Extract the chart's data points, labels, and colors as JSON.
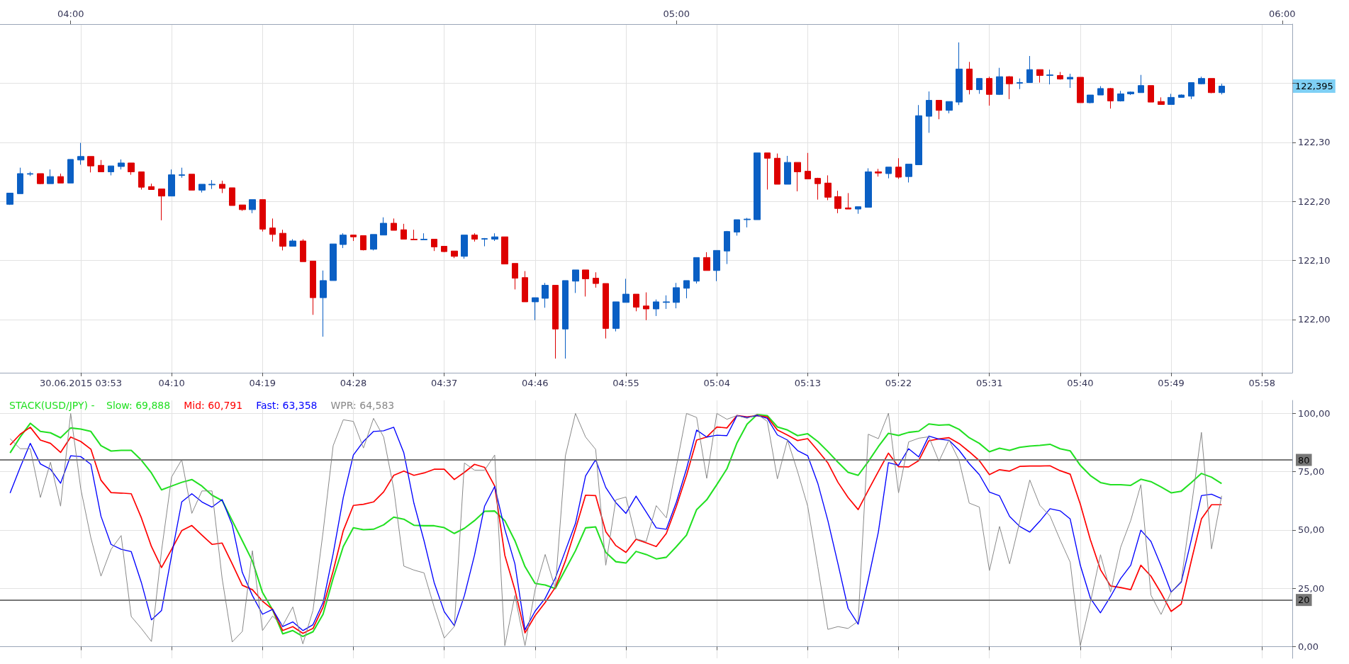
{
  "chart_data": [
    {
      "type": "candlestick",
      "x": [
        "2015-06-30T03:54",
        "2015-06-30T03:55",
        "2015-06-30T03:56",
        "2015-06-30T03:57",
        "2015-06-30T03:58",
        "2015-06-30T03:59",
        "2015-06-30T04:00",
        "2015-06-30T04:01",
        "2015-06-30T04:02",
        "2015-06-30T04:03",
        "2015-06-30T04:04",
        "2015-06-30T04:05",
        "2015-06-30T04:06",
        "2015-06-30T04:07",
        "2015-06-30T04:08",
        "2015-06-30T04:09",
        "2015-06-30T04:10",
        "2015-06-30T04:11",
        "2015-06-30T04:12",
        "2015-06-30T04:13",
        "2015-06-30T04:14",
        "2015-06-30T04:15",
        "2015-06-30T04:16",
        "2015-06-30T04:17",
        "2015-06-30T04:18",
        "2015-06-30T04:19",
        "2015-06-30T04:20",
        "2015-06-30T04:21",
        "2015-06-30T04:22",
        "2015-06-30T04:23",
        "2015-06-30T04:24",
        "2015-06-30T04:25",
        "2015-06-30T04:26",
        "2015-06-30T04:27",
        "2015-06-30T04:28",
        "2015-06-30T04:29",
        "2015-06-30T04:30",
        "2015-06-30T04:31",
        "2015-06-30T04:32",
        "2015-06-30T04:33",
        "2015-06-30T04:34",
        "2015-06-30T04:35",
        "2015-06-30T04:36",
        "2015-06-30T04:37",
        "2015-06-30T04:38",
        "2015-06-30T04:39",
        "2015-06-30T04:40",
        "2015-06-30T04:41",
        "2015-06-30T04:42",
        "2015-06-30T04:43",
        "2015-06-30T04:44",
        "2015-06-30T04:45",
        "2015-06-30T04:46",
        "2015-06-30T04:47",
        "2015-06-30T04:48",
        "2015-06-30T04:49",
        "2015-06-30T04:50",
        "2015-06-30T04:51",
        "2015-06-30T04:52",
        "2015-06-30T04:53",
        "2015-06-30T04:54",
        "2015-06-30T04:55",
        "2015-06-30T04:56",
        "2015-06-30T04:57",
        "2015-06-30T04:58",
        "2015-06-30T04:59",
        "2015-06-30T05:00",
        "2015-06-30T05:01",
        "2015-06-30T05:02",
        "2015-06-30T05:03",
        "2015-06-30T05:04",
        "2015-06-30T05:05",
        "2015-06-30T05:06",
        "2015-06-30T05:07",
        "2015-06-30T05:08",
        "2015-06-30T05:09",
        "2015-06-30T05:10",
        "2015-06-30T05:11",
        "2015-06-30T05:12",
        "2015-06-30T05:13",
        "2015-06-30T05:14",
        "2015-06-30T05:15",
        "2015-06-30T05:16",
        "2015-06-30T05:17",
        "2015-06-30T05:18",
        "2015-06-30T05:19",
        "2015-06-30T05:20",
        "2015-06-30T05:21",
        "2015-06-30T05:22",
        "2015-06-30T05:23",
        "2015-06-30T05:24",
        "2015-06-30T05:25",
        "2015-06-30T05:26",
        "2015-06-30T05:27",
        "2015-06-30T05:28",
        "2015-06-30T05:29",
        "2015-06-30T05:30",
        "2015-06-30T05:31",
        "2015-06-30T05:32",
        "2015-06-30T05:33",
        "2015-06-30T05:34",
        "2015-06-30T05:35",
        "2015-06-30T05:36",
        "2015-06-30T05:37",
        "2015-06-30T05:38",
        "2015-06-30T05:39",
        "2015-06-30T05:40",
        "2015-06-30T05:41",
        "2015-06-30T05:42",
        "2015-06-30T05:43",
        "2015-06-30T05:44",
        "2015-06-30T05:45",
        "2015-06-30T05:46",
        "2015-06-30T05:47",
        "2015-06-30T05:48",
        "2015-06-30T05:49",
        "2015-06-30T05:50",
        "2015-06-30T05:51",
        "2015-06-30T05:52",
        "2015-06-30T05:53",
        "2015-06-30T05:54"
      ],
      "ohlc": [
        [
          122.195,
          122.214,
          122.194,
          122.214
        ],
        [
          122.213,
          122.257,
          122.213,
          122.247
        ],
        [
          122.246,
          122.25,
          122.243,
          122.247
        ],
        [
          122.247,
          122.247,
          122.229,
          122.23
        ],
        [
          122.23,
          122.254,
          122.23,
          122.242
        ],
        [
          122.242,
          122.247,
          122.231,
          122.231
        ],
        [
          122.231,
          122.271,
          122.231,
          122.271
        ],
        [
          122.27,
          122.299,
          122.262,
          122.276
        ],
        [
          122.276,
          122.276,
          122.249,
          122.26
        ],
        [
          122.261,
          122.27,
          122.25,
          122.25
        ],
        [
          122.25,
          122.26,
          122.244,
          122.26
        ],
        [
          122.259,
          122.271,
          122.254,
          122.265
        ],
        [
          122.265,
          122.265,
          122.245,
          122.25
        ],
        [
          122.25,
          122.25,
          122.22,
          122.224
        ],
        [
          122.225,
          122.23,
          122.22,
          122.22
        ],
        [
          122.221,
          122.221,
          122.168,
          122.209
        ],
        [
          122.209,
          122.254,
          122.209,
          122.245
        ],
        [
          122.244,
          122.257,
          122.24,
          122.245
        ],
        [
          122.246,
          122.246,
          122.219,
          122.219
        ],
        [
          122.219,
          122.229,
          122.215,
          122.229
        ],
        [
          122.228,
          122.236,
          122.221,
          122.229
        ],
        [
          122.229,
          122.235,
          122.214,
          122.222
        ],
        [
          122.223,
          122.223,
          122.193,
          122.193
        ],
        [
          122.194,
          122.194,
          122.184,
          122.186
        ],
        [
          122.186,
          122.203,
          122.18,
          122.203
        ],
        [
          122.203,
          122.203,
          122.149,
          122.153
        ],
        [
          122.155,
          122.171,
          122.132,
          122.144
        ],
        [
          122.146,
          122.152,
          122.117,
          122.124
        ],
        [
          122.124,
          122.136,
          122.124,
          122.133
        ],
        [
          122.133,
          122.136,
          122.098,
          122.098
        ],
        [
          122.099,
          122.099,
          122.008,
          122.037
        ],
        [
          122.037,
          122.083,
          121.971,
          122.066
        ],
        [
          122.066,
          122.128,
          122.066,
          122.128
        ],
        [
          122.127,
          122.146,
          122.121,
          122.143
        ],
        [
          122.143,
          122.143,
          122.133,
          122.14
        ],
        [
          122.142,
          122.142,
          122.117,
          122.118
        ],
        [
          122.119,
          122.144,
          122.117,
          122.144
        ],
        [
          122.143,
          122.173,
          122.143,
          122.163
        ],
        [
          122.163,
          122.171,
          122.151,
          122.151
        ],
        [
          122.152,
          122.162,
          122.136,
          122.136
        ],
        [
          122.136,
          122.152,
          122.135,
          122.135
        ],
        [
          122.135,
          122.146,
          122.135,
          122.136
        ],
        [
          122.136,
          122.136,
          122.116,
          122.123
        ],
        [
          122.124,
          122.124,
          122.114,
          122.115
        ],
        [
          122.116,
          122.116,
          122.104,
          122.107
        ],
        [
          122.107,
          122.143,
          122.103,
          122.143
        ],
        [
          122.143,
          122.146,
          122.132,
          122.136
        ],
        [
          122.136,
          122.138,
          122.124,
          122.137
        ],
        [
          122.136,
          122.146,
          122.133,
          122.14
        ],
        [
          122.14,
          122.14,
          122.094,
          122.094
        ],
        [
          122.095,
          122.095,
          122.051,
          122.07
        ],
        [
          122.071,
          122.082,
          122.03,
          122.03
        ],
        [
          122.03,
          122.037,
          121.999,
          122.037
        ],
        [
          122.036,
          122.062,
          122.02,
          122.058
        ],
        [
          122.058,
          122.058,
          121.934,
          121.984
        ],
        [
          121.984,
          122.066,
          121.934,
          122.066
        ],
        [
          122.065,
          122.084,
          122.045,
          122.084
        ],
        [
          122.084,
          122.084,
          122.039,
          122.069
        ],
        [
          122.07,
          122.08,
          122.054,
          122.061
        ],
        [
          122.061,
          122.061,
          121.968,
          121.985
        ],
        [
          121.985,
          122.03,
          121.98,
          122.03
        ],
        [
          122.029,
          122.069,
          122.029,
          122.043
        ],
        [
          122.043,
          122.043,
          122.014,
          122.021
        ],
        [
          122.023,
          122.046,
          121.999,
          122.018
        ],
        [
          122.018,
          122.034,
          122.006,
          122.03
        ],
        [
          122.029,
          122.041,
          122.018,
          122.03
        ],
        [
          122.029,
          122.062,
          122.019,
          122.054
        ],
        [
          122.053,
          122.066,
          122.036,
          122.066
        ],
        [
          122.065,
          122.105,
          122.061,
          122.105
        ],
        [
          122.105,
          122.114,
          122.083,
          122.083
        ],
        [
          122.083,
          122.117,
          122.065,
          122.117
        ],
        [
          122.116,
          122.15,
          122.094,
          122.149
        ],
        [
          122.148,
          122.169,
          122.142,
          122.169
        ],
        [
          122.169,
          122.172,
          122.156,
          122.17
        ],
        [
          122.169,
          122.282,
          122.169,
          122.282
        ],
        [
          122.282,
          122.282,
          122.22,
          122.273
        ],
        [
          122.273,
          122.281,
          122.229,
          122.229
        ],
        [
          122.229,
          122.277,
          122.229,
          122.266
        ],
        [
          122.266,
          122.266,
          122.217,
          122.25
        ],
        [
          122.251,
          122.282,
          122.238,
          122.238
        ],
        [
          122.239,
          122.24,
          122.203,
          122.23
        ],
        [
          122.231,
          122.244,
          122.202,
          122.207
        ],
        [
          122.208,
          122.218,
          122.18,
          122.188
        ],
        [
          122.189,
          122.214,
          122.187,
          122.187
        ],
        [
          122.187,
          122.191,
          122.179,
          122.191
        ],
        [
          122.19,
          122.256,
          122.19,
          122.25
        ],
        [
          122.25,
          122.255,
          122.242,
          122.248
        ],
        [
          122.247,
          122.258,
          122.239,
          122.258
        ],
        [
          122.258,
          122.273,
          122.238,
          122.241
        ],
        [
          122.242,
          122.263,
          122.232,
          122.263
        ],
        [
          122.262,
          122.363,
          122.262,
          122.345
        ],
        [
          122.344,
          122.386,
          122.316,
          122.371
        ],
        [
          122.371,
          122.371,
          122.339,
          122.354
        ],
        [
          122.354,
          122.369,
          122.349,
          122.369
        ],
        [
          122.368,
          122.469,
          122.363,
          122.424
        ],
        [
          122.424,
          122.436,
          122.381,
          122.389
        ],
        [
          122.389,
          122.408,
          122.382,
          122.408
        ],
        [
          122.408,
          122.411,
          122.362,
          122.381
        ],
        [
          122.381,
          122.426,
          122.38,
          122.411
        ],
        [
          122.411,
          122.412,
          122.373,
          122.399
        ],
        [
          122.4,
          122.408,
          122.39,
          122.401
        ],
        [
          122.401,
          122.446,
          122.401,
          122.423
        ],
        [
          122.423,
          122.423,
          122.401,
          122.413
        ],
        [
          122.413,
          122.423,
          122.398,
          122.414
        ],
        [
          122.413,
          122.419,
          122.406,
          122.407
        ],
        [
          122.407,
          122.416,
          122.392,
          122.41
        ],
        [
          122.41,
          122.41,
          122.367,
          122.367
        ],
        [
          122.367,
          122.38,
          122.366,
          122.38
        ],
        [
          122.38,
          122.395,
          122.38,
          122.391
        ],
        [
          122.391,
          122.392,
          122.357,
          122.37
        ],
        [
          122.37,
          122.387,
          122.369,
          122.382
        ],
        [
          122.382,
          122.386,
          122.38,
          122.385
        ],
        [
          122.384,
          122.414,
          122.384,
          122.396
        ],
        [
          122.396,
          122.396,
          122.368,
          122.368
        ],
        [
          122.369,
          122.376,
          122.364,
          122.364
        ],
        [
          122.364,
          122.382,
          122.364,
          122.376
        ],
        [
          122.376,
          122.381,
          122.376,
          122.38
        ],
        [
          122.378,
          122.401,
          122.373,
          122.401
        ],
        [
          122.399,
          122.411,
          122.398,
          122.408
        ],
        [
          122.408,
          122.408,
          122.383,
          122.384
        ],
        [
          122.384,
          122.399,
          122.381,
          122.395
        ]
      ],
      "colors": [
        "#0a5fc4",
        "#0a5fc4",
        "#0a5fc4",
        "#dd0000",
        "#0a5fc4",
        "#dd0000",
        "#0a5fc4",
        "#0a5fc4",
        "#dd0000",
        "#dd0000",
        "#0a5fc4",
        "#0a5fc4",
        "#dd0000",
        "#dd0000",
        "#dd0000",
        "#dd0000",
        "#0a5fc4",
        "#0a5fc4",
        "#dd0000",
        "#0a5fc4",
        "#0a5fc4",
        "#dd0000",
        "#dd0000",
        "#dd0000",
        "#0a5fc4",
        "#dd0000",
        "#dd0000",
        "#dd0000",
        "#0a5fc4",
        "#dd0000",
        "#dd0000",
        "#0a5fc4",
        "#0a5fc4",
        "#0a5fc4",
        "#dd0000",
        "#dd0000",
        "#0a5fc4",
        "#0a5fc4",
        "#dd0000",
        "#dd0000",
        "#dd0000",
        "#0a5fc4",
        "#dd0000",
        "#dd0000",
        "#dd0000",
        "#0a5fc4",
        "#dd0000",
        "#0a5fc4",
        "#0a5fc4",
        "#dd0000",
        "#dd0000",
        "#dd0000",
        "#0a5fc4",
        "#0a5fc4",
        "#dd0000",
        "#0a5fc4",
        "#0a5fc4",
        "#dd0000",
        "#dd0000",
        "#dd0000",
        "#0a5fc4",
        "#0a5fc4",
        "#dd0000",
        "#dd0000",
        "#0a5fc4",
        "#0a5fc4",
        "#0a5fc4",
        "#0a5fc4",
        "#0a5fc4",
        "#dd0000",
        "#0a5fc4",
        "#0a5fc4",
        "#0a5fc4",
        "#0a5fc4",
        "#0a5fc4",
        "#dd0000",
        "#dd0000",
        "#0a5fc4",
        "#dd0000",
        "#dd0000",
        "#dd0000",
        "#dd0000",
        "#dd0000",
        "#dd0000",
        "#0a5fc4",
        "#0a5fc4",
        "#dd0000",
        "#0a5fc4",
        "#dd0000",
        "#0a5fc4",
        "#0a5fc4",
        "#0a5fc4",
        "#dd0000",
        "#0a5fc4",
        "#0a5fc4",
        "#dd0000",
        "#0a5fc4",
        "#dd0000",
        "#0a5fc4",
        "#dd0000",
        "#0a5fc4",
        "#0a5fc4",
        "#dd0000",
        "#0a5fc4",
        "#dd0000",
        "#0a5fc4",
        "#dd0000",
        "#0a5fc4",
        "#0a5fc4",
        "#dd0000",
        "#0a5fc4",
        "#0a5fc4",
        "#0a5fc4",
        "#dd0000",
        "#dd0000",
        "#0a5fc4",
        "#0a5fc4",
        "#0a5fc4",
        "#0a5fc4",
        "#dd0000",
        "#0a5fc4"
      ],
      "xlim": [
        "2015-06-30T03:53",
        "2015-06-30T06:01"
      ],
      "xticks": [
        {
          "value": "2015-06-30T04:01",
          "label": "30.06.2015 03:53"
        },
        {
          "value": "2015-06-30T04:10",
          "label": "04:10"
        },
        {
          "value": "2015-06-30T04:19",
          "label": "04:19"
        },
        {
          "value": "2015-06-30T04:28",
          "label": "04:28"
        },
        {
          "value": "2015-06-30T04:37",
          "label": "04:37"
        },
        {
          "value": "2015-06-30T04:46",
          "label": "04:46"
        },
        {
          "value": "2015-06-30T04:55",
          "label": "04:55"
        },
        {
          "value": "2015-06-30T05:04",
          "label": "05:04"
        },
        {
          "value": "2015-06-30T05:13",
          "label": "05:13"
        },
        {
          "value": "2015-06-30T05:22",
          "label": "05:22"
        },
        {
          "value": "2015-06-30T05:31",
          "label": "05:31"
        },
        {
          "value": "2015-06-30T05:40",
          "label": "05:40"
        },
        {
          "value": "2015-06-30T05:49",
          "label": "05:49"
        },
        {
          "value": "2015-06-30T05:58",
          "label": "05:58"
        }
      ],
      "x2lim": [
        "2015-06-30T03:53",
        "2015-06-30T06:01"
      ],
      "x2ticks": [
        {
          "value": "2015-06-30T04:00",
          "label": "04:00"
        },
        {
          "value": "2015-06-30T05:00",
          "label": "05:00"
        },
        {
          "value": "2015-06-30T06:00",
          "label": "06:00"
        }
      ],
      "ylim": [
        121.91,
        122.5
      ],
      "yticks": [
        {
          "value": 122,
          "label": "122,00"
        },
        {
          "value": 122.1,
          "label": "122,10"
        },
        {
          "value": 122.2,
          "label": "122,20"
        },
        {
          "value": 122.3,
          "label": "122,30"
        },
        {
          "value": 122.4,
          "label": null
        }
      ],
      "annotations": [
        "122,395"
      ],
      "grid": true
    },
    {
      "type": "line",
      "title": "STACK(USD/JPY) -",
      "x": [
        "2015-06-30T03:54",
        "2015-06-30T03:55",
        "2015-06-30T03:56",
        "2015-06-30T03:57",
        "2015-06-30T03:58",
        "2015-06-30T03:59",
        "2015-06-30T04:00",
        "2015-06-30T04:01",
        "2015-06-30T04:02",
        "2015-06-30T04:03",
        "2015-06-30T04:04",
        "2015-06-30T04:05",
        "2015-06-30T04:06",
        "2015-06-30T04:07",
        "2015-06-30T04:08",
        "2015-06-30T04:09",
        "2015-06-30T04:10",
        "2015-06-30T04:11",
        "2015-06-30T04:12",
        "2015-06-30T04:13",
        "2015-06-30T04:14",
        "2015-06-30T04:15",
        "2015-06-30T04:16",
        "2015-06-30T04:17",
        "2015-06-30T04:18",
        "2015-06-30T04:19",
        "2015-06-30T04:20",
        "2015-06-30T04:21",
        "2015-06-30T04:22",
        "2015-06-30T04:23",
        "2015-06-30T04:24",
        "2015-06-30T04:25",
        "2015-06-30T04:26",
        "2015-06-30T04:27",
        "2015-06-30T04:28",
        "2015-06-30T04:29",
        "2015-06-30T04:30",
        "2015-06-30T04:31",
        "2015-06-30T04:32",
        "2015-06-30T04:33",
        "2015-06-30T04:34",
        "2015-06-30T04:35",
        "2015-06-30T04:36",
        "2015-06-30T04:37",
        "2015-06-30T04:38",
        "2015-06-30T04:39",
        "2015-06-30T04:40",
        "2015-06-30T04:41",
        "2015-06-30T04:42",
        "2015-06-30T04:43",
        "2015-06-30T04:44",
        "2015-06-30T04:45",
        "2015-06-30T04:46",
        "2015-06-30T04:47",
        "2015-06-30T04:48",
        "2015-06-30T04:49",
        "2015-06-30T04:50",
        "2015-06-30T04:51",
        "2015-06-30T04:52",
        "2015-06-30T04:53",
        "2015-06-30T04:54",
        "2015-06-30T04:55",
        "2015-06-30T04:56",
        "2015-06-30T04:57",
        "2015-06-30T04:58",
        "2015-06-30T04:59",
        "2015-06-30T05:00",
        "2015-06-30T05:01",
        "2015-06-30T05:02",
        "2015-06-30T05:03",
        "2015-06-30T05:04",
        "2015-06-30T05:05",
        "2015-06-30T05:06",
        "2015-06-30T05:07",
        "2015-06-30T05:08",
        "2015-06-30T05:09",
        "2015-06-30T05:10",
        "2015-06-30T05:11",
        "2015-06-30T05:12",
        "2015-06-30T05:13",
        "2015-06-30T05:14",
        "2015-06-30T05:15",
        "2015-06-30T05:16",
        "2015-06-30T05:17",
        "2015-06-30T05:18",
        "2015-06-30T05:19",
        "2015-06-30T05:20",
        "2015-06-30T05:21",
        "2015-06-30T05:22",
        "2015-06-30T05:23",
        "2015-06-30T05:24",
        "2015-06-30T05:25",
        "2015-06-30T05:26",
        "2015-06-30T05:27",
        "2015-06-30T05:28",
        "2015-06-30T05:29",
        "2015-06-30T05:30",
        "2015-06-30T05:31",
        "2015-06-30T05:32",
        "2015-06-30T05:33",
        "2015-06-30T05:34",
        "2015-06-30T05:35",
        "2015-06-30T05:36",
        "2015-06-30T05:37",
        "2015-06-30T05:38",
        "2015-06-30T05:39",
        "2015-06-30T05:40",
        "2015-06-30T05:41",
        "2015-06-30T05:42",
        "2015-06-30T05:43",
        "2015-06-30T05:44",
        "2015-06-30T05:45",
        "2015-06-30T05:46",
        "2015-06-30T05:47",
        "2015-06-30T05:48",
        "2015-06-30T05:49",
        "2015-06-30T05:50",
        "2015-06-30T05:51",
        "2015-06-30T05:52",
        "2015-06-30T05:53",
        "2015-06-30T05:54"
      ],
      "series": [
        {
          "name": "Slow: 69,888",
          "color": "#22e022",
          "values": [
            83,
            89.8,
            95.7,
            92.2,
            91.6,
            89.5,
            93.7,
            93.2,
            92.2,
            86.1,
            83.8,
            84.1,
            84.1,
            79.9,
            74.4,
            67.2,
            68.8,
            70.4,
            71.6,
            68.8,
            64.9,
            62.6,
            54,
            45.4,
            36.7,
            23.2,
            15.8,
            5.5,
            6.9,
            4.4,
            6.4,
            13.9,
            29.3,
            42.9,
            50.9,
            50.1,
            50.3,
            52.2,
            55.5,
            54.6,
            52,
            51.8,
            51.8,
            51,
            48.5,
            50.7,
            54,
            58,
            58.1,
            54,
            45.4,
            34.3,
            27.1,
            26.4,
            24.9,
            33,
            41.1,
            50.9,
            51.3,
            40.4,
            36.4,
            35.8,
            40.8,
            39.5,
            37.6,
            38.3,
            42.9,
            47.8,
            58.7,
            62.9,
            69.4,
            76.2,
            87.3,
            95.3,
            99.4,
            99,
            94.1,
            92.8,
            90.4,
            91.2,
            87.9,
            83.6,
            79,
            74.7,
            73.4,
            79.3,
            85.7,
            91.4,
            90.5,
            91.8,
            92.3,
            95.4,
            94.9,
            95.1,
            93.1,
            89.5,
            87.1,
            83.5,
            85,
            84.1,
            85.4,
            85.9,
            86.2,
            86.7,
            84.8,
            83.9,
            77.7,
            73.3,
            70.3,
            69.4,
            69.4,
            69.1,
            71.7,
            70.7,
            68.4,
            65.9,
            66.6,
            70.3,
            74.2,
            72.6,
            69.9
          ]
        },
        {
          "name": "Mid: 60,791",
          "color": "#ff0000",
          "values": [
            86.4,
            91,
            94,
            88.5,
            87.1,
            83.2,
            89.8,
            87.9,
            84.6,
            71.3,
            66,
            65.8,
            65.5,
            55.2,
            42.9,
            33.9,
            41.7,
            49.7,
            51.9,
            47.8,
            43.8,
            44.4,
            35.5,
            26.3,
            24.4,
            19.5,
            16,
            6.9,
            8.6,
            5.7,
            7.8,
            17,
            32.4,
            49.7,
            60.5,
            61,
            62,
            66.3,
            73.4,
            75.2,
            73.4,
            74.4,
            76,
            76,
            71.6,
            74.7,
            78.1,
            76.8,
            68.8,
            39.2,
            24.4,
            5.9,
            13.3,
            18.9,
            25.4,
            36.7,
            50.3,
            64.9,
            64.7,
            49.3,
            43.3,
            40.4,
            46,
            44.5,
            42.9,
            48.5,
            60.2,
            73.4,
            88.5,
            89.8,
            94.1,
            93.7,
            99,
            98.4,
            99,
            98.4,
            92.8,
            90.6,
            88.3,
            89.1,
            84,
            78.7,
            70.4,
            63.9,
            58.7,
            67,
            75,
            82.9,
            77.1,
            77,
            79.7,
            88.2,
            89,
            89.5,
            87,
            83.5,
            79.7,
            73.7,
            75.8,
            75.2,
            77.2,
            77.4,
            77.4,
            77.5,
            75.4,
            73.9,
            61.1,
            45.8,
            33,
            26,
            25.3,
            24.4,
            34.9,
            30.2,
            23,
            15.1,
            18.3,
            36.8,
            54.7,
            60.8,
            60.8
          ]
        },
        {
          "name": "Fast: 63,358",
          "color": "#0000ff",
          "values": [
            65.8,
            76.8,
            87.1,
            78.3,
            76,
            70,
            81.8,
            81.4,
            78.1,
            55.9,
            43.8,
            41.7,
            40.7,
            27.5,
            11.5,
            15.5,
            39.2,
            62,
            65.5,
            62,
            59.8,
            63,
            52.2,
            31.8,
            21.9,
            13.9,
            16,
            8.6,
            10.6,
            6.9,
            9.4,
            18.9,
            39.8,
            63.9,
            82.1,
            87.9,
            92.2,
            92.5,
            94,
            83,
            61.4,
            45.4,
            27.5,
            15,
            9,
            21.9,
            39.2,
            60.2,
            68.6,
            50.3,
            35.5,
            7.2,
            15.2,
            20.7,
            29.3,
            41.1,
            52.8,
            73.1,
            80.1,
            68.2,
            61.7,
            57.1,
            64.5,
            57.7,
            50.9,
            50.3,
            62,
            76.2,
            92.8,
            89.8,
            90.6,
            90.4,
            99,
            98.2,
            99,
            97.8,
            90.7,
            88.5,
            84,
            81.8,
            70,
            54,
            35.5,
            16.4,
            9.6,
            28.7,
            49.1,
            78.8,
            77.7,
            84.8,
            81.3,
            90.2,
            88.9,
            88.4,
            84.1,
            78.4,
            73.7,
            66.2,
            64.6,
            55.8,
            51.5,
            49.1,
            53.8,
            59.1,
            58.2,
            54.7,
            34.9,
            20.8,
            14.5,
            21.5,
            29.2,
            34.9,
            49.9,
            45.1,
            34.7,
            23.4,
            27.6,
            45.8,
            64.7,
            65.3,
            63.4
          ]
        },
        {
          "name": "WPR: 64,583",
          "color": "#888888",
          "values": [
            89.1,
            84.8,
            84.8,
            63.9,
            79,
            60.2,
            99.9,
            67.6,
            46.6,
            30.2,
            41.7,
            47.6,
            12.9,
            7.8,
            2.2,
            41.1,
            72.7,
            80.1,
            57.1,
            66.7,
            66.7,
            29.3,
            2,
            6.5,
            41.1,
            6.9,
            13.1,
            9,
            17,
            1.2,
            15.5,
            49.1,
            86.1,
            97.2,
            96.5,
            85.1,
            97.8,
            89.8,
            67.6,
            34.5,
            32.8,
            31.6,
            17,
            3.7,
            8.6,
            78.7,
            75.6,
            75.6,
            82.1,
            0.4,
            21.9,
            0.4,
            24.4,
            39.5,
            25,
            81.8,
            99.9,
            89.8,
            84.5,
            34.9,
            62.9,
            64.1,
            46.2,
            45,
            60.4,
            55.2,
            77.4,
            99.9,
            98.2,
            72.1,
            99.9,
            97.4,
            99,
            97.8,
            99.6,
            96.5,
            71.9,
            88.5,
            75,
            60.2,
            34.3,
            7.4,
            8.6,
            7.8,
            10.9,
            91,
            89.1,
            100,
            65.9,
            87.7,
            89.3,
            89.9,
            79.4,
            88.6,
            79.7,
            61.5,
            59.8,
            32.6,
            51.5,
            35.5,
            53.5,
            71.4,
            60.5,
            56,
            45.8,
            36.2,
            0.4,
            18.9,
            39.4,
            23.4,
            42.6,
            54.1,
            69.4,
            22.1,
            13.8,
            23.4,
            28.1,
            59.8,
            91.8,
            41.9,
            64.6
          ]
        }
      ],
      "xlim": [
        "2015-06-30T03:53",
        "2015-06-30T06:01"
      ],
      "xticks": [
        {
          "value": "2015-06-30T04:01",
          "label": null
        },
        {
          "value": "2015-06-30T04:10",
          "label": null
        },
        {
          "value": "2015-06-30T04:19",
          "label": null
        },
        {
          "value": "2015-06-30T04:28",
          "label": null
        },
        {
          "value": "2015-06-30T04:37",
          "label": null
        },
        {
          "value": "2015-06-30T04:46",
          "label": null
        },
        {
          "value": "2015-06-30T04:55",
          "label": null
        },
        {
          "value": "2015-06-30T05:04",
          "label": null
        },
        {
          "value": "2015-06-30T05:13",
          "label": null
        },
        {
          "value": "2015-06-30T05:22",
          "label": null
        },
        {
          "value": "2015-06-30T05:31",
          "label": null
        },
        {
          "value": "2015-06-30T05:40",
          "label": null
        },
        {
          "value": "2015-06-30T05:49",
          "label": null
        },
        {
          "value": "2015-06-30T05:58",
          "label": null
        }
      ],
      "ylim": [
        -5,
        105.5
      ],
      "yticks": [
        {
          "value": 0,
          "label": "0,00"
        },
        {
          "value": 25,
          "label": "25,00"
        },
        {
          "value": 50,
          "label": "50,00"
        },
        {
          "value": 75,
          "label": "75,00"
        },
        {
          "value": 100,
          "label": "100,00"
        }
      ],
      "ref_lines": [
        {
          "axis": "y",
          "value": 80,
          "label": "80",
          "color": "#777777"
        },
        {
          "axis": "y",
          "value": 20,
          "label": "20",
          "color": "#777777"
        }
      ],
      "grid": true,
      "legend": "top left",
      "marker": "none",
      "tick_labels": "y"
    }
  ]
}
